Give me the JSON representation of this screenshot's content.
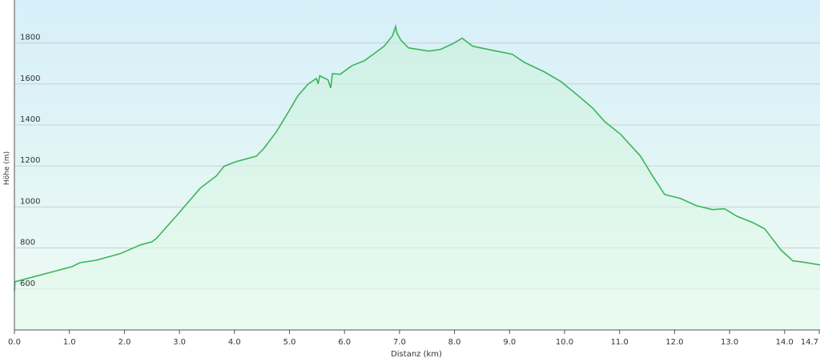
{
  "chart_data": {
    "type": "area",
    "xlabel": "Distanz  (km)",
    "ylabel": "Höhe (m)",
    "xlim": [
      0,
      14.7
    ],
    "ylim": [
      400,
      1990
    ],
    "x_ticks": [
      "0.0",
      "1.0",
      "2.0",
      "3.0",
      "4.0",
      "5.0",
      "6.0",
      "7.0",
      "8.0",
      "9.0",
      "10.0",
      "11.0",
      "12.0",
      "13.0",
      "14.0",
      "14.7"
    ],
    "y_ticks": [
      600,
      800,
      1000,
      1200,
      1400,
      1600,
      1800
    ],
    "grid": true,
    "colors": {
      "line": "#3cb55a",
      "bg_top": "#d6eff9",
      "bg_bottom": "#eefbf2"
    },
    "points": [
      [
        0.0,
        590
      ],
      [
        0.01,
        635
      ],
      [
        1.05,
        709
      ],
      [
        1.19,
        728
      ],
      [
        1.48,
        740
      ],
      [
        1.92,
        772
      ],
      [
        2.29,
        815
      ],
      [
        2.5,
        830
      ],
      [
        2.58,
        846
      ],
      [
        2.94,
        955
      ],
      [
        3.38,
        1092
      ],
      [
        3.67,
        1151
      ],
      [
        3.81,
        1198
      ],
      [
        4.03,
        1221
      ],
      [
        4.4,
        1248
      ],
      [
        4.54,
        1287
      ],
      [
        4.76,
        1366
      ],
      [
        4.98,
        1463
      ],
      [
        5.15,
        1541
      ],
      [
        5.34,
        1600
      ],
      [
        5.49,
        1627
      ],
      [
        5.52,
        1600
      ],
      [
        5.55,
        1640
      ],
      [
        5.7,
        1620
      ],
      [
        5.75,
        1580
      ],
      [
        5.78,
        1650
      ],
      [
        5.92,
        1647
      ],
      [
        6.14,
        1690
      ],
      [
        6.36,
        1713
      ],
      [
        6.58,
        1756
      ],
      [
        6.72,
        1784
      ],
      [
        6.87,
        1834
      ],
      [
        6.93,
        1880
      ],
      [
        6.95,
        1850
      ],
      [
        7.02,
        1815
      ],
      [
        7.16,
        1776
      ],
      [
        7.53,
        1760
      ],
      [
        7.74,
        1768
      ],
      [
        7.96,
        1795
      ],
      [
        8.14,
        1823
      ],
      [
        8.33,
        1784
      ],
      [
        8.76,
        1760
      ],
      [
        9.05,
        1745
      ],
      [
        9.27,
        1705
      ],
      [
        9.64,
        1658
      ],
      [
        9.93,
        1612
      ],
      [
        10.22,
        1549
      ],
      [
        10.51,
        1483
      ],
      [
        10.73,
        1416
      ],
      [
        11.02,
        1354
      ],
      [
        11.38,
        1248
      ],
      [
        11.6,
        1151
      ],
      [
        11.82,
        1061
      ],
      [
        12.11,
        1041
      ],
      [
        12.4,
        1006
      ],
      [
        12.69,
        987
      ],
      [
        12.91,
        991
      ],
      [
        13.13,
        955
      ],
      [
        13.42,
        924
      ],
      [
        13.64,
        893
      ],
      [
        13.74,
        858
      ],
      [
        13.93,
        791
      ],
      [
        14.15,
        737
      ],
      [
        14.29,
        733
      ],
      [
        14.7,
        715
      ]
    ]
  }
}
